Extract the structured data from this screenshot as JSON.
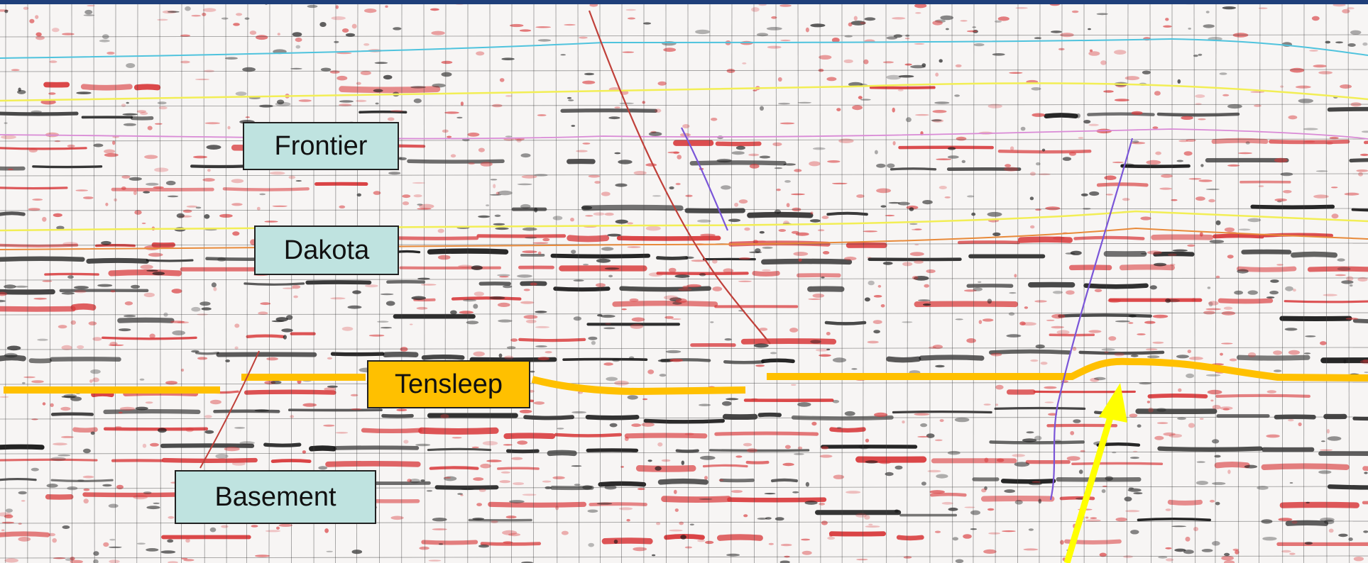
{
  "labels": {
    "frontier": "Frontier",
    "dakota": "Dakota",
    "tensleep": "Tensleep",
    "basement": "Basement"
  },
  "colors": {
    "top_bar": "#1f3f7a",
    "label_teal": "#bfe3e0",
    "label_gold": "#ffc000",
    "horizon_tensleep": "#ffc000",
    "horizon_yellow": "#f2ee55",
    "horizon_cyan": "#4fc3dd",
    "horizon_purple": "#8a5fd0",
    "fault_red": "#c0403a",
    "fault_purple": "#7a55d8",
    "arrow": "#ffff00",
    "trace_red": "#d8383a",
    "trace_black": "#151515"
  }
}
